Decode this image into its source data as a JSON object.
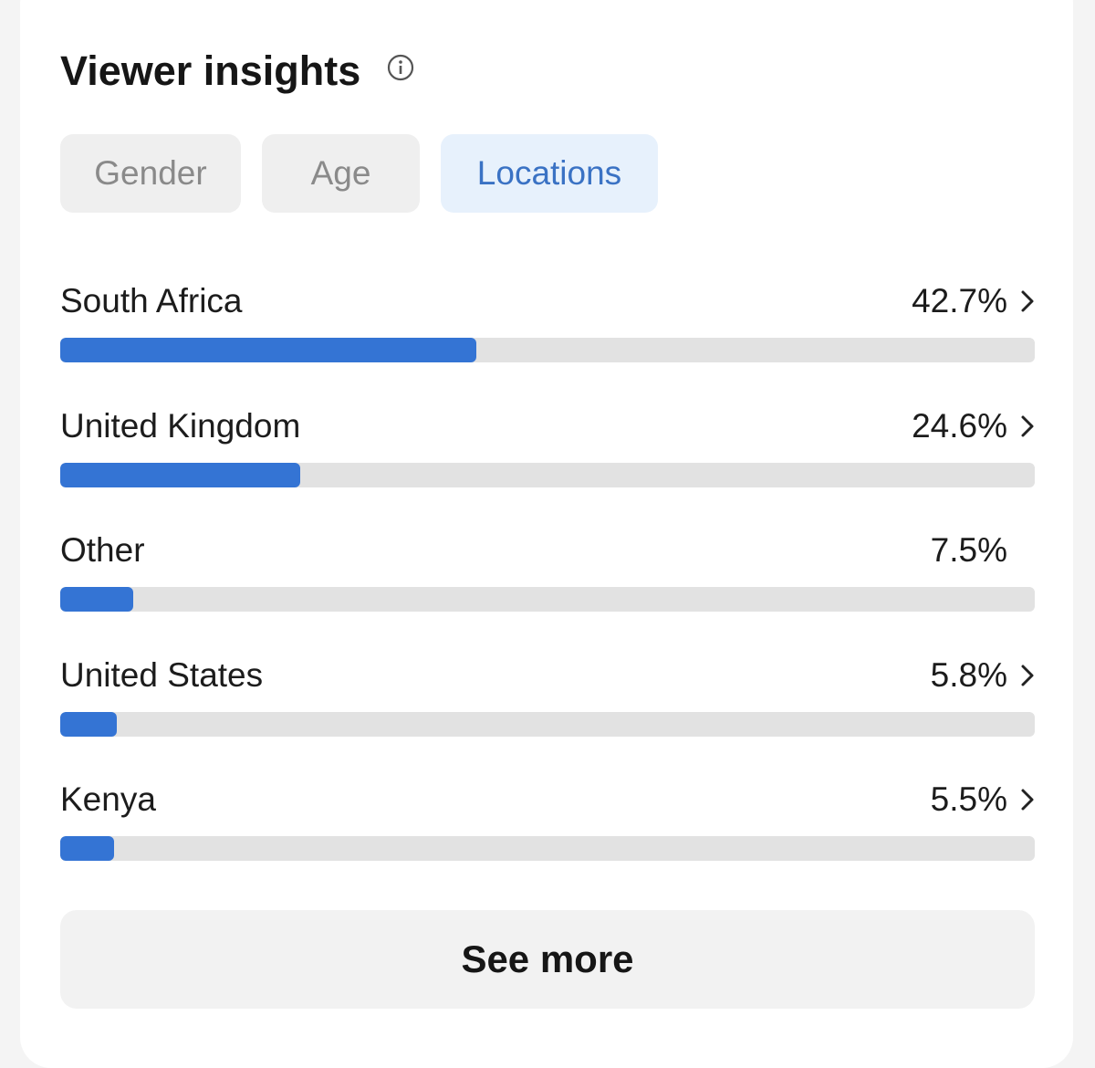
{
  "header": {
    "title": "Viewer insights"
  },
  "tabs": {
    "labels": [
      "Gender",
      "Age",
      "Locations"
    ],
    "active": 2
  },
  "locations": {
    "names": [
      "South Africa",
      "United Kingdom",
      "Other",
      "United States",
      "Kenya"
    ],
    "values": [
      42.7,
      24.6,
      7.5,
      5.8,
      5.5
    ],
    "value_labels": [
      "42.7%",
      "24.6%",
      "7.5%",
      "5.8%",
      "5.5%"
    ],
    "has_link": [
      true,
      true,
      false,
      true,
      true
    ],
    "xlim": [
      0,
      100
    ],
    "color": "#3474d4",
    "track_color": "#e2e2e2"
  },
  "see_more": "See more"
}
